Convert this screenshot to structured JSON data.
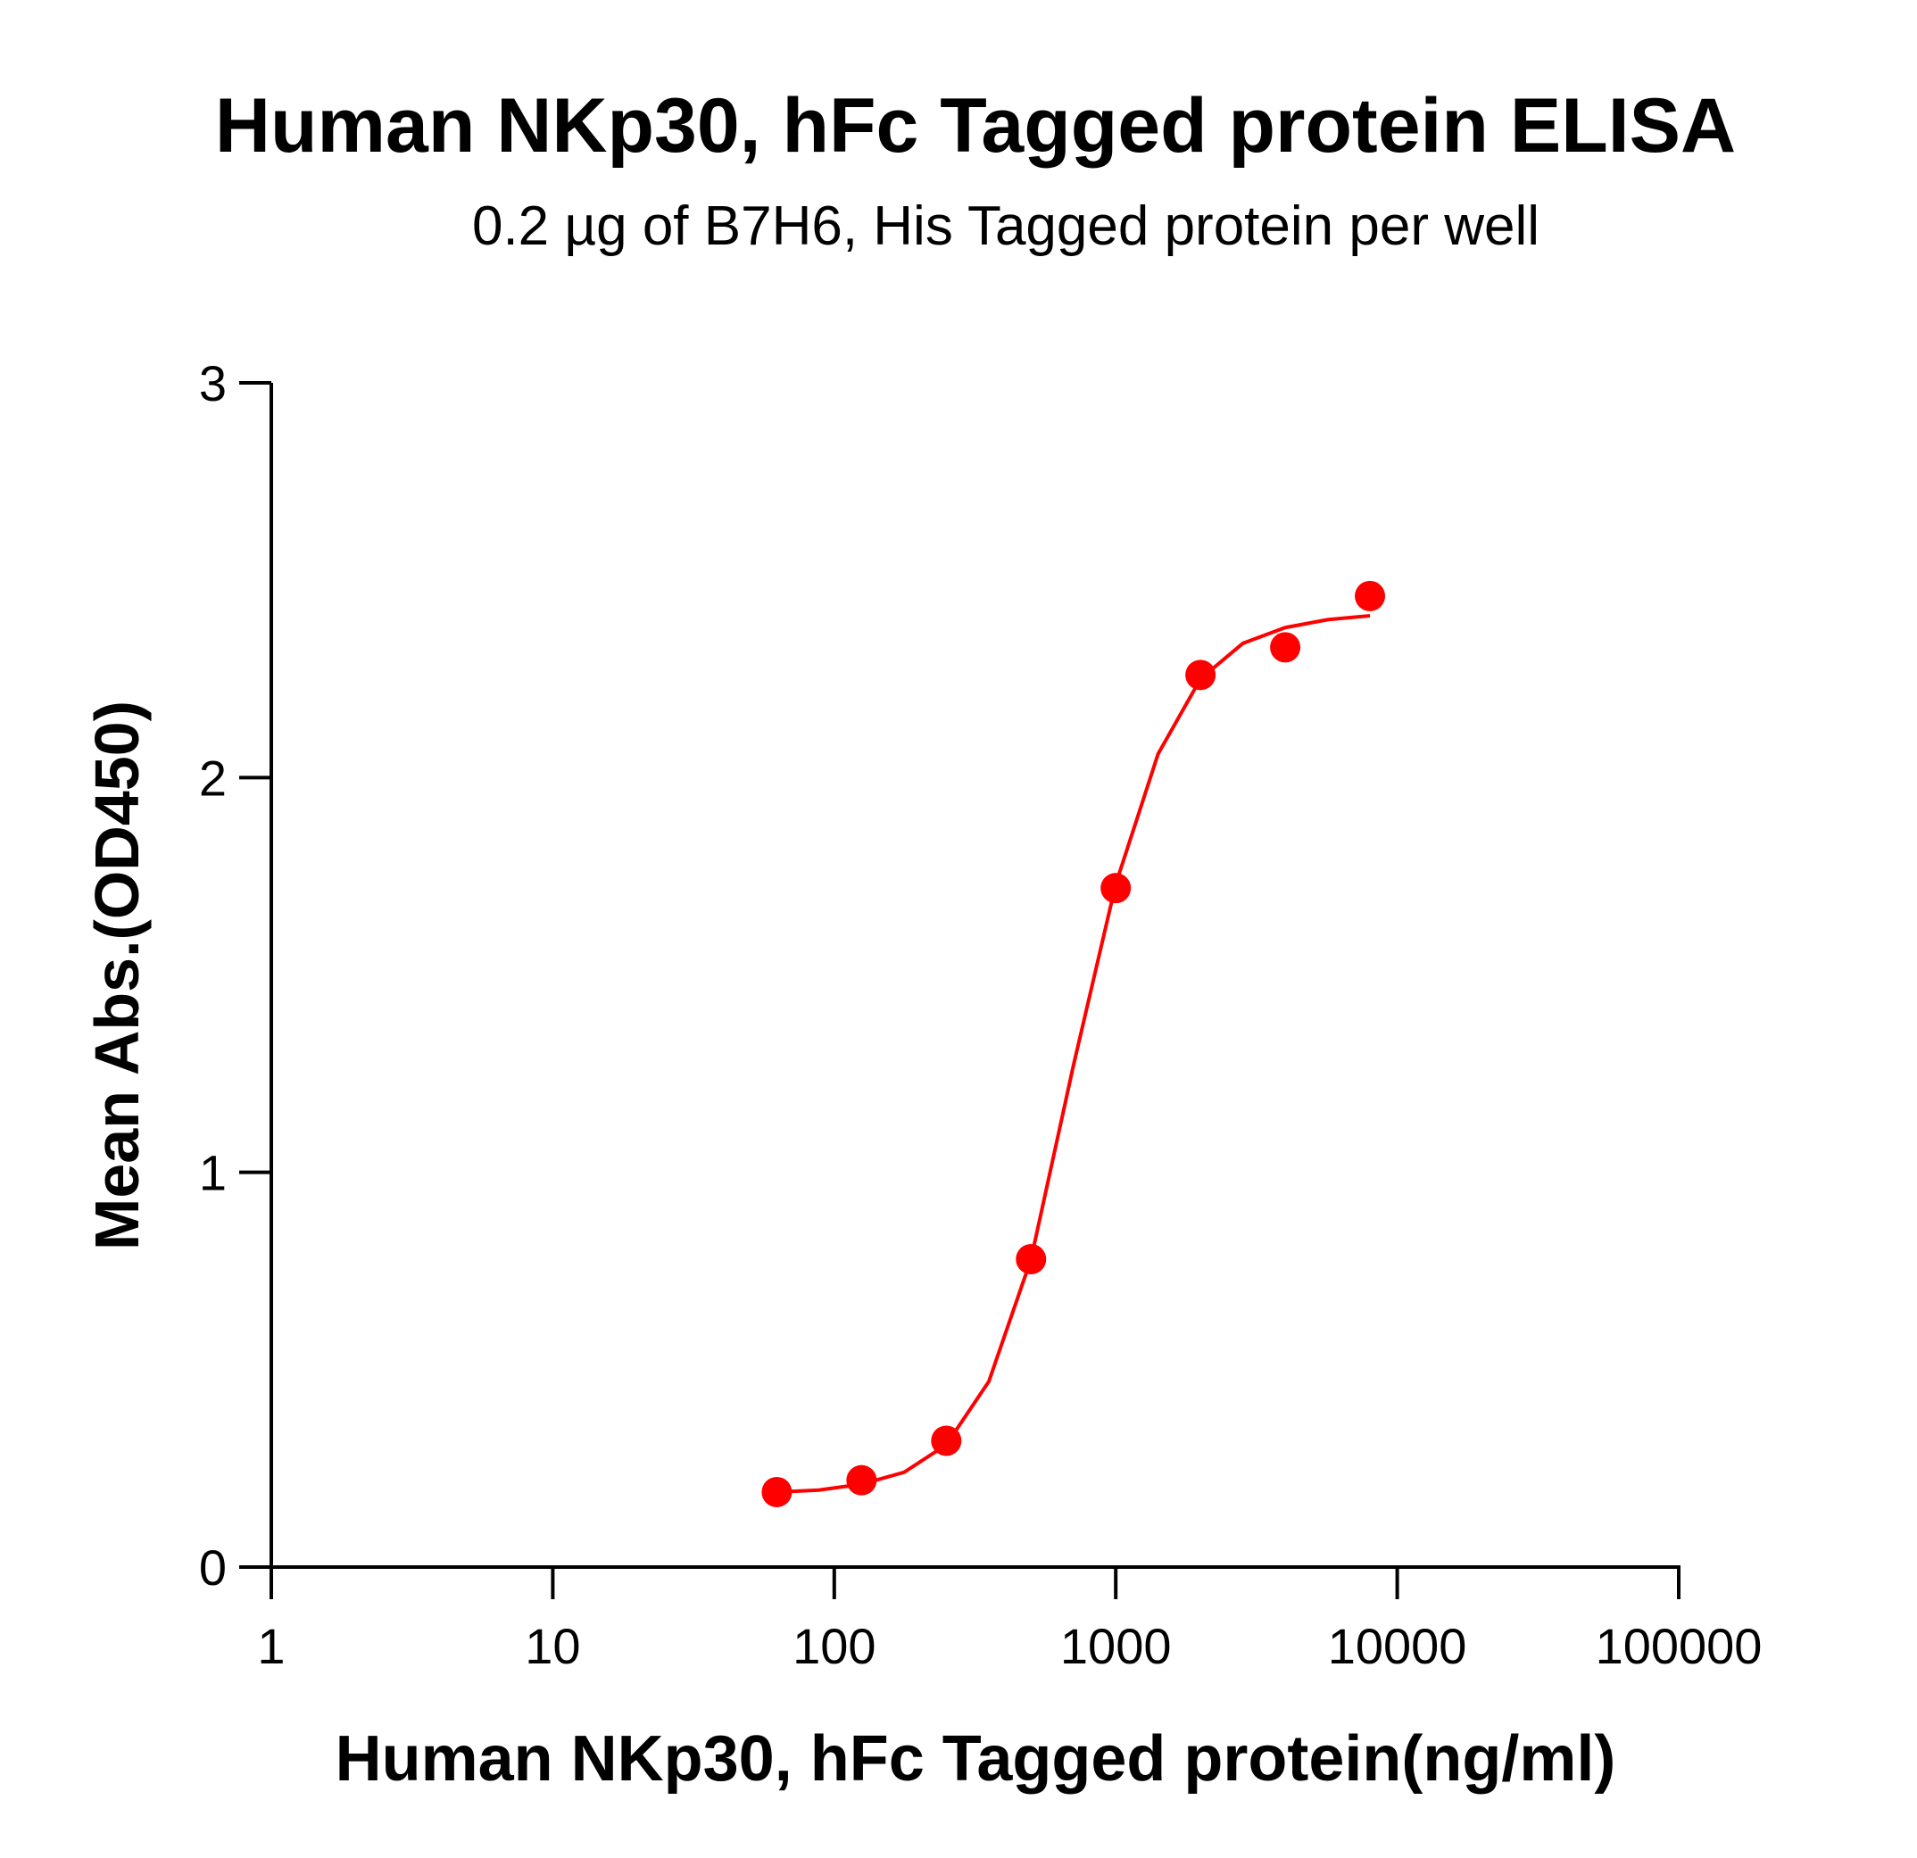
{
  "chart_data": {
    "type": "scatter",
    "title": "Human NKp30, hFc Tagged protein ELISA",
    "subtitle": "0.2 µg of B7H6, His Tagged protein per well",
    "x_label": "Human NKp30, hFc Tagged protein(ng/ml)",
    "y_label": "Mean Abs.(OD450)",
    "x_scale": "log",
    "xlim": [
      1,
      100000
    ],
    "xticks": [
      1,
      10,
      100,
      1000,
      10000,
      100000
    ],
    "ylim": [
      0,
      3
    ],
    "yticks": [
      0,
      1,
      2,
      3
    ],
    "series": [
      {
        "color": "#ff0000",
        "marker": "circle",
        "x": [
          62.5,
          125,
          250,
          500,
          1000,
          2000,
          4000,
          8000
        ],
        "values": [
          0.19,
          0.22,
          0.32,
          0.78,
          1.72,
          2.26,
          2.33,
          2.46
        ]
      },
      {
        "color": "#ff0000",
        "marker": "line",
        "x": [
          62.5,
          88,
          125,
          177,
          250,
          354,
          500,
          707,
          1000,
          1414,
          2000,
          2828,
          4000,
          5657,
          8000
        ],
        "values": [
          0.19,
          0.195,
          0.21,
          0.24,
          0.31,
          0.47,
          0.78,
          1.27,
          1.73,
          2.06,
          2.25,
          2.34,
          2.38,
          2.4,
          2.41
        ]
      }
    ]
  }
}
